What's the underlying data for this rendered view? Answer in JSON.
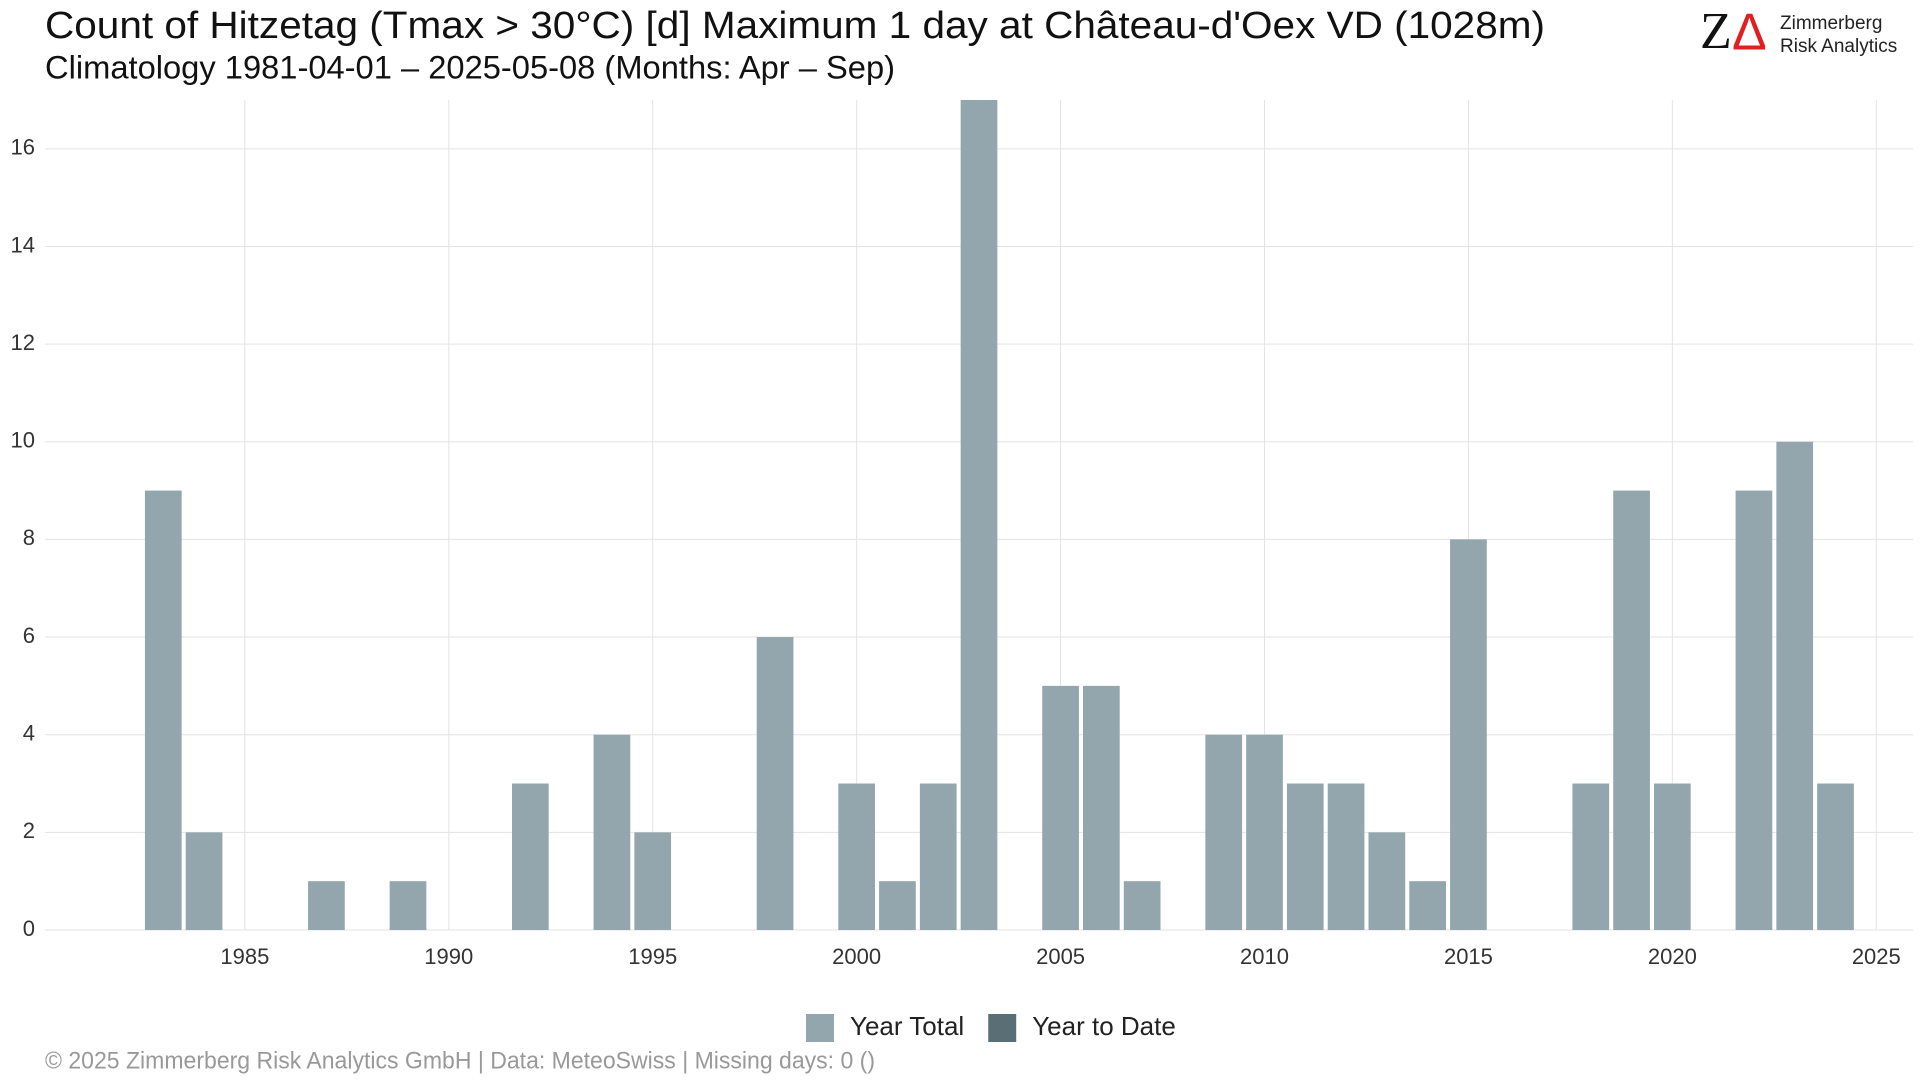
{
  "chart_data": {
    "type": "bar",
    "title": "Count of Hitzetag (Tmax > 30°C) [d] Maximum 1 day at Château-d'Oex  VD (1028m)",
    "subtitle": "Climatology 1981-04-01 – 2025-05-08 (Months: Apr – Sep)",
    "x": [
      1983,
      1984,
      1987,
      1989,
      1992,
      1994,
      1995,
      1998,
      2000,
      2001,
      2002,
      2003,
      2005,
      2006,
      2007,
      2009,
      2010,
      2011,
      2012,
      2013,
      2014,
      2015,
      2018,
      2019,
      2020,
      2022,
      2023,
      2024
    ],
    "series": [
      {
        "name": "Year Total",
        "color": "#93a6ad",
        "values": [
          9,
          2,
          1,
          1,
          3,
          4,
          2,
          6,
          3,
          1,
          3,
          17,
          5,
          5,
          1,
          4,
          4,
          3,
          3,
          2,
          1,
          8,
          3,
          9,
          3,
          9,
          10,
          3
        ]
      },
      {
        "name": "Year to Date",
        "color": "#5a6e75",
        "values": [
          null,
          null,
          null,
          null,
          null,
          null,
          null,
          null,
          null,
          null,
          null,
          null,
          null,
          null,
          null,
          null,
          null,
          null,
          null,
          null,
          null,
          null,
          null,
          null,
          null,
          null,
          null,
          null
        ]
      }
    ],
    "xlim": [
      1980.1,
      2025.9
    ],
    "xticks": [
      1985,
      1990,
      1995,
      2000,
      2005,
      2010,
      2015,
      2020,
      2025
    ],
    "ylim": [
      0,
      17
    ],
    "yticks": [
      0,
      2,
      4,
      6,
      8,
      10,
      12,
      14,
      16
    ],
    "grid": true,
    "legend": "bottom",
    "footer": "©  2025 Zimmerberg Risk Analytics GmbH | Data: MeteoSwiss | Missing days: 0 ()",
    "logo": {
      "mark_left": "Z",
      "mark_right": "Δ",
      "line1": "Zimmerberg",
      "line2": "Risk Analytics"
    }
  }
}
